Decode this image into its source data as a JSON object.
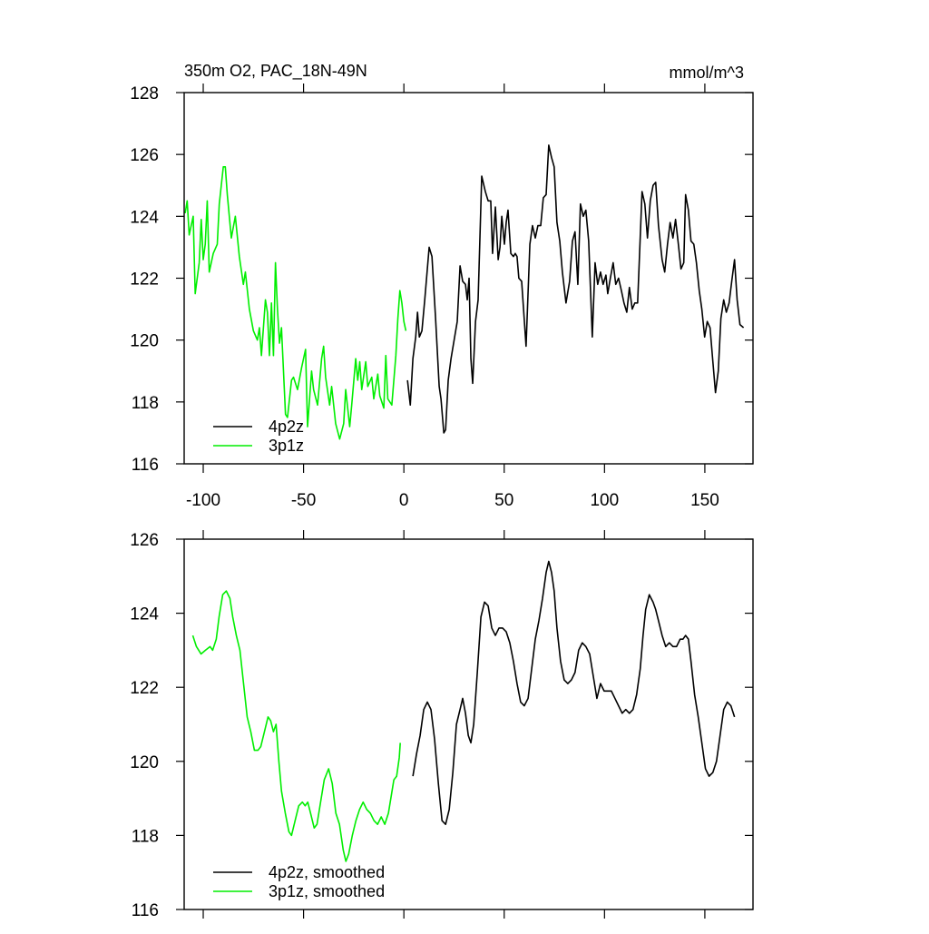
{
  "chart_data": [
    {
      "type": "line",
      "title": "350m O2, PAC_18N-49N",
      "units_label": "mmol/m^3",
      "xlim": [
        -109.5,
        174
      ],
      "xticks": [
        -100,
        -50,
        0,
        50,
        100,
        150
      ],
      "xtick_labels": true,
      "ylim": [
        116,
        128
      ],
      "yticks": [
        116,
        118,
        120,
        122,
        124,
        126,
        128
      ],
      "legend": "lower left",
      "series": [
        {
          "name": "4p2z",
          "color": "#000000",
          "x": [
            1.8,
            3.2,
            4.5,
            5.9,
            6.8,
            7.7,
            9.0,
            10.4,
            12.6,
            14.0,
            15.8,
            17.6,
            18.5,
            19.9,
            20.8,
            22.1,
            23.5,
            25.3,
            26.6,
            28.0,
            29.3,
            30.7,
            31.6,
            32.5,
            33.4,
            34.3,
            35.7,
            37.0,
            38.8,
            40.6,
            42.0,
            43.3,
            44.2,
            45.6,
            47.0,
            47.9,
            48.8,
            50.1,
            51.0,
            51.9,
            53.3,
            54.6,
            55.5,
            56.4,
            57.3,
            58.7,
            60.9,
            62.8,
            64.1,
            65.5,
            66.8,
            68.2,
            69.5,
            70.9,
            72.2,
            73.6,
            74.9,
            76.3,
            77.7,
            79.0,
            80.8,
            82.6,
            84.0,
            85.3,
            86.7,
            88.0,
            89.4,
            90.7,
            92.1,
            93.9,
            95.3,
            96.6,
            98.0,
            99.3,
            100.7,
            101.6,
            102.9,
            104.3,
            105.6,
            107.0,
            108.4,
            109.7,
            111.1,
            112.4,
            113.8,
            115.1,
            116.5,
            118.7,
            120.1,
            121.4,
            122.8,
            124.2,
            125.5,
            126.9,
            128.7,
            130.0,
            131.4,
            132.7,
            134.1,
            135.4,
            136.8,
            138.1,
            139.5,
            140.4,
            141.8,
            143.1,
            144.5,
            145.8,
            147.2,
            148.5,
            149.9,
            151.2,
            152.6,
            154.0,
            155.3,
            156.7,
            158.0,
            159.4,
            160.7,
            162.1,
            163.4,
            164.8,
            166.1,
            167.5,
            169.3
          ],
          "values": [
            118.7,
            117.9,
            119.4,
            120.1,
            120.9,
            120.1,
            120.3,
            121.3,
            123.0,
            122.7,
            120.7,
            118.5,
            118.1,
            117.0,
            117.1,
            118.7,
            119.4,
            120.1,
            120.6,
            122.4,
            121.9,
            121.8,
            121.3,
            122.0,
            119.4,
            118.6,
            120.6,
            121.3,
            125.3,
            124.8,
            124.5,
            124.5,
            122.8,
            124.3,
            122.6,
            123.0,
            124.0,
            123.1,
            123.8,
            124.2,
            122.8,
            122.7,
            122.8,
            122.7,
            122.0,
            121.9,
            119.8,
            123.1,
            123.7,
            123.3,
            123.7,
            123.7,
            124.6,
            124.7,
            126.3,
            125.9,
            125.6,
            123.8,
            123.2,
            122.2,
            121.2,
            121.9,
            123.2,
            123.5,
            121.8,
            124.4,
            124.0,
            124.2,
            123.2,
            120.1,
            122.5,
            121.8,
            122.2,
            121.8,
            122.1,
            121.5,
            122.0,
            122.5,
            121.8,
            122.0,
            121.6,
            121.2,
            120.9,
            121.7,
            121.0,
            121.2,
            121.2,
            124.8,
            124.4,
            123.3,
            124.5,
            125.0,
            125.1,
            123.7,
            122.6,
            122.2,
            123.1,
            123.8,
            123.3,
            123.9,
            123.1,
            122.3,
            122.5,
            124.7,
            124.2,
            123.2,
            123.1,
            122.5,
            121.6,
            121.0,
            120.1,
            120.6,
            120.4,
            119.3,
            118.3,
            119.0,
            120.7,
            121.3,
            120.9,
            121.2,
            121.9,
            122.6,
            121.3,
            120.5,
            120.4
          ]
        },
        {
          "name": "3p1z",
          "color": "#00ee00",
          "x": [
            -109,
            -108,
            -107,
            -106,
            -105,
            -104,
            -102,
            -101,
            -100,
            -99,
            -98,
            -97,
            -95,
            -93,
            -92,
            -90,
            -89,
            -88,
            -86,
            -84,
            -82,
            -80,
            -79,
            -77,
            -75,
            -73,
            -72,
            -71,
            -69,
            -68,
            -67,
            -66,
            -65,
            -64,
            -63,
            -62,
            -61,
            -59,
            -58,
            -56,
            -55,
            -53,
            -51,
            -49,
            -48,
            -46,
            -45,
            -43,
            -41,
            -40,
            -39,
            -37,
            -36,
            -34,
            -32,
            -30,
            -29,
            -27,
            -26,
            -24,
            -23,
            -22,
            -21,
            -19,
            -18,
            -16,
            -15,
            -13,
            -12,
            -10,
            -9,
            -8,
            -6,
            -5,
            -4,
            -3,
            -2,
            -1,
            0,
            1
          ],
          "values": [
            124.1,
            124.5,
            123.4,
            123.7,
            124.0,
            121.5,
            122.5,
            123.9,
            122.6,
            123.1,
            124.5,
            122.2,
            122.8,
            123.1,
            124.4,
            125.6,
            125.6,
            124.7,
            123.3,
            124.0,
            122.7,
            121.8,
            122.2,
            121.0,
            120.3,
            120.0,
            120.4,
            119.5,
            121.3,
            120.9,
            119.5,
            121.2,
            119.5,
            122.5,
            121.0,
            119.9,
            120.4,
            117.6,
            117.5,
            118.7,
            118.8,
            118.4,
            119.1,
            119.7,
            117.2,
            119.0,
            118.4,
            117.9,
            119.4,
            119.8,
            118.8,
            117.9,
            118.5,
            117.3,
            116.8,
            117.3,
            118.4,
            117.2,
            117.9,
            119.4,
            118.7,
            119.3,
            118.4,
            119.3,
            118.5,
            118.8,
            118.1,
            118.9,
            118.2,
            117.8,
            119.5,
            118.1,
            117.9,
            118.7,
            119.5,
            120.7,
            121.6,
            121.2,
            120.6,
            120.3
          ]
        }
      ]
    },
    {
      "type": "line",
      "xlim": [
        -109.5,
        174
      ],
      "xticks": [
        -100,
        -50,
        0,
        50,
        100,
        150
      ],
      "xtick_labels": false,
      "ylim": [
        116,
        126
      ],
      "yticks": [
        116,
        118,
        120,
        122,
        124,
        126
      ],
      "legend": "lower left",
      "series": [
        {
          "name": "4p2z, smoothed",
          "color": "#000000",
          "x": [
            4.5,
            6.3,
            8.1,
            9.9,
            11.7,
            13.5,
            15.3,
            17.2,
            19.0,
            20.8,
            22.6,
            24.4,
            26.2,
            28.0,
            29.3,
            30.7,
            32.1,
            33.4,
            34.8,
            36.6,
            38.4,
            40.2,
            42.0,
            43.8,
            45.6,
            47.4,
            49.2,
            51.0,
            52.8,
            54.6,
            56.4,
            58.2,
            60.0,
            61.9,
            63.7,
            65.5,
            67.3,
            69.1,
            70.9,
            72.2,
            73.6,
            74.9,
            76.3,
            78.1,
            79.9,
            81.7,
            83.5,
            85.3,
            87.1,
            88.9,
            90.7,
            92.6,
            94.4,
            96.2,
            98.0,
            99.8,
            101.6,
            103.4,
            105.2,
            107.0,
            108.8,
            110.6,
            112.4,
            114.2,
            116.0,
            117.8,
            119.2,
            120.5,
            122.3,
            124.2,
            125.5,
            126.9,
            128.7,
            130.5,
            132.3,
            134.1,
            135.9,
            137.7,
            139.1,
            140.4,
            141.8,
            143.1,
            144.9,
            146.7,
            148.5,
            150.3,
            152.1,
            154.0,
            155.8,
            157.6,
            159.4,
            161.2,
            163.0,
            164.8
          ],
          "values": [
            119.6,
            120.2,
            120.7,
            121.4,
            121.6,
            121.4,
            120.6,
            119.4,
            118.4,
            118.3,
            118.7,
            119.7,
            121.0,
            121.4,
            121.7,
            121.3,
            120.7,
            120.5,
            121.0,
            122.4,
            123.9,
            124.3,
            124.2,
            123.6,
            123.4,
            123.6,
            123.6,
            123.5,
            123.2,
            122.7,
            122.1,
            121.6,
            121.5,
            121.7,
            122.5,
            123.3,
            123.8,
            124.4,
            125.1,
            125.4,
            125.1,
            124.6,
            123.6,
            122.7,
            122.2,
            122.1,
            122.2,
            122.4,
            123.0,
            123.2,
            123.1,
            122.9,
            122.3,
            121.7,
            122.1,
            121.9,
            121.9,
            121.9,
            121.7,
            121.5,
            121.3,
            121.4,
            121.3,
            121.4,
            121.8,
            122.5,
            123.4,
            124.1,
            124.5,
            124.3,
            124.1,
            123.8,
            123.4,
            123.1,
            123.2,
            123.1,
            123.1,
            123.3,
            123.3,
            123.4,
            123.3,
            122.7,
            121.8,
            121.2,
            120.5,
            119.8,
            119.6,
            119.7,
            120.0,
            120.7,
            121.4,
            121.6,
            121.5,
            121.2
          ]
        },
        {
          "name": "3p1z, smoothed",
          "color": "#00ee00",
          "x": [
            -105.2,
            -103.4,
            -101.1,
            -98.9,
            -96.6,
            -95.3,
            -93.5,
            -92.1,
            -90.3,
            -88.5,
            -86.7,
            -85.3,
            -83.5,
            -81.7,
            -79.9,
            -78.1,
            -76.3,
            -74.5,
            -72.7,
            -71.3,
            -69.5,
            -67.7,
            -66.4,
            -65.0,
            -63.7,
            -62.3,
            -61.0,
            -59.1,
            -57.3,
            -56.0,
            -54.2,
            -52.4,
            -50.6,
            -49.2,
            -47.9,
            -46.5,
            -44.7,
            -43.3,
            -41.5,
            -39.7,
            -37.5,
            -35.7,
            -33.9,
            -32.1,
            -30.2,
            -28.9,
            -27.5,
            -25.7,
            -23.9,
            -22.1,
            -20.3,
            -18.5,
            -16.7,
            -14.9,
            -13.1,
            -11.3,
            -9.5,
            -7.7,
            -5.9,
            -5.0,
            -3.6,
            -2.3,
            -1.8
          ],
          "values": [
            123.4,
            123.1,
            122.9,
            123.0,
            123.1,
            123.0,
            123.3,
            123.9,
            124.5,
            124.6,
            124.4,
            123.9,
            123.4,
            123.0,
            122.1,
            121.2,
            120.8,
            120.3,
            120.3,
            120.4,
            120.8,
            121.2,
            121.1,
            120.8,
            121.0,
            120.0,
            119.2,
            118.6,
            118.1,
            118.0,
            118.4,
            118.8,
            118.9,
            118.8,
            118.9,
            118.6,
            118.2,
            118.3,
            118.9,
            119.5,
            119.8,
            119.4,
            118.6,
            118.3,
            117.6,
            117.3,
            117.5,
            118.0,
            118.4,
            118.7,
            118.9,
            118.7,
            118.6,
            118.4,
            118.3,
            118.5,
            118.3,
            118.6,
            119.2,
            119.5,
            119.6,
            120.1,
            120.5
          ]
        }
      ]
    }
  ]
}
